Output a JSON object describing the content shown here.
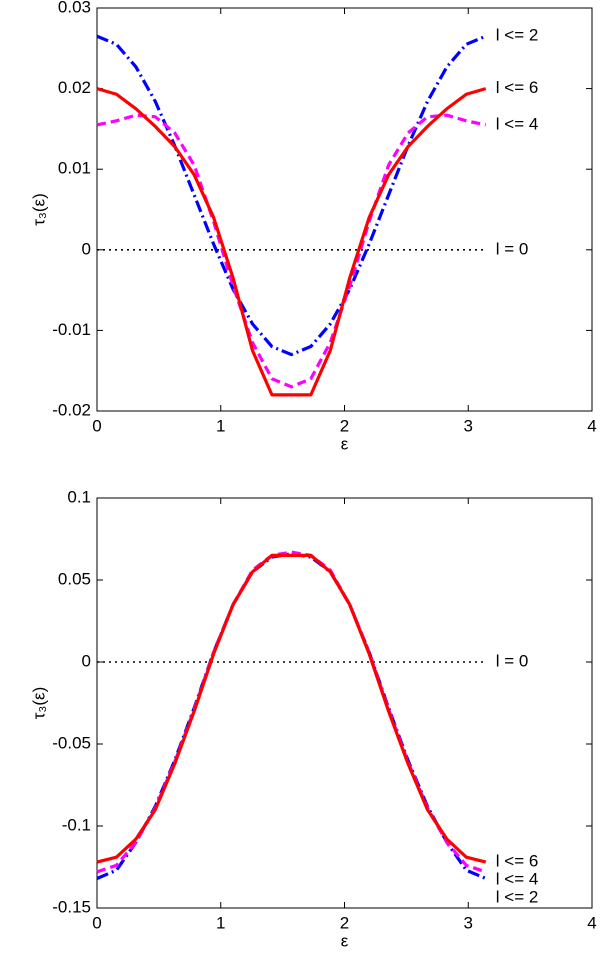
{
  "chart_data": [
    {
      "type": "line",
      "xlabel": "ε",
      "ylabel": "τ₃(ε)",
      "x": [
        0,
        0.1571,
        0.3142,
        0.4712,
        0.6283,
        0.7854,
        0.9425,
        1.0996,
        1.2566,
        1.4137,
        1.5708,
        1.7279,
        1.885,
        2.042,
        2.1991,
        2.3562,
        2.5133,
        2.6704,
        2.8274,
        2.9845,
        3.1416
      ],
      "xlim": [
        0,
        4
      ],
      "xticks": [
        0,
        1,
        2,
        3,
        4
      ],
      "ylim": [
        -0.02,
        0.03
      ],
      "yticks": [
        -0.02,
        -0.01,
        0,
        0.01,
        0.02,
        0.03
      ],
      "series": [
        {
          "name": "l = 0",
          "color": "#000000",
          "linestyle": "dotted",
          "values": [
            0,
            0,
            0,
            0,
            0,
            0,
            0,
            0,
            0,
            0,
            0,
            0,
            0,
            0,
            0,
            0,
            0,
            0,
            0,
            0,
            0
          ]
        },
        {
          "name": "l <= 2",
          "color": "#0000ff",
          "linestyle": "dashdot",
          "values": [
            0.0265,
            0.0255,
            0.0227,
            0.0184,
            0.0129,
            0.0068,
            0.0007,
            -0.0049,
            -0.0092,
            -0.012,
            -0.013,
            -0.012,
            -0.0092,
            -0.0049,
            0.0007,
            0.0068,
            0.0129,
            0.0184,
            0.0227,
            0.0255,
            0.0265
          ]
        },
        {
          "name": "l <= 4",
          "color": "#ff00ff",
          "linestyle": "dashed",
          "values": [
            0.0155,
            0.016,
            0.0167,
            0.0165,
            0.0145,
            0.0105,
            0.0035,
            -0.0045,
            -0.0115,
            -0.016,
            -0.017,
            -0.016,
            -0.0115,
            -0.0045,
            0.0035,
            0.0105,
            0.0145,
            0.0165,
            0.0167,
            0.016,
            0.0155
          ]
        },
        {
          "name": "l <= 6",
          "color": "#ff0000",
          "linestyle": "solid",
          "values": [
            0.02,
            0.0193,
            0.0175,
            0.0153,
            0.0128,
            0.0093,
            0.004,
            -0.0035,
            -0.0125,
            -0.018,
            -0.018,
            -0.018,
            -0.0125,
            -0.0035,
            0.004,
            0.0093,
            0.0128,
            0.0153,
            0.0175,
            0.0193,
            0.02
          ]
        }
      ]
    },
    {
      "type": "line",
      "xlabel": "ε",
      "ylabel": "τ₃(ε)",
      "x": [
        0,
        0.1571,
        0.3142,
        0.4712,
        0.6283,
        0.7854,
        0.9425,
        1.0996,
        1.2566,
        1.4137,
        1.5708,
        1.7279,
        1.885,
        2.042,
        2.1991,
        2.3562,
        2.5133,
        2.6704,
        2.8274,
        2.9845,
        3.1416
      ],
      "xlim": [
        0,
        4
      ],
      "xticks": [
        0,
        1,
        2,
        3,
        4
      ],
      "ylim": [
        -0.15,
        0.1
      ],
      "yticks": [
        -0.15,
        -0.1,
        -0.05,
        0,
        0.05,
        0.1
      ],
      "series": [
        {
          "name": "l = 0",
          "color": "#000000",
          "linestyle": "dotted",
          "values": [
            0,
            0,
            0,
            0,
            0,
            0,
            0,
            0,
            0,
            0,
            0,
            0,
            0,
            0,
            0,
            0,
            0,
            0,
            0,
            0,
            0
          ]
        },
        {
          "name": "l <= 2",
          "color": "#0000ff",
          "linestyle": "dashdot",
          "values": [
            -0.132,
            -0.127,
            -0.11,
            -0.088,
            -0.06,
            -0.028,
            0.006,
            0.035,
            0.055,
            0.064,
            0.066,
            0.064,
            0.055,
            0.035,
            0.006,
            -0.028,
            -0.06,
            -0.088,
            -0.11,
            -0.127,
            -0.132
          ]
        },
        {
          "name": "l <= 4",
          "color": "#ff00ff",
          "linestyle": "dashed",
          "values": [
            -0.128,
            -0.124,
            -0.11,
            -0.089,
            -0.061,
            -0.029,
            0.006,
            0.035,
            0.056,
            0.065,
            0.067,
            0.065,
            0.056,
            0.035,
            0.006,
            -0.029,
            -0.061,
            -0.089,
            -0.11,
            -0.124,
            -0.128
          ]
        },
        {
          "name": "l <= 6",
          "color": "#ff0000",
          "linestyle": "solid",
          "values": [
            -0.122,
            -0.119,
            -0.108,
            -0.09,
            -0.062,
            -0.03,
            0.005,
            0.035,
            0.055,
            0.065,
            0.065,
            0.065,
            0.055,
            0.035,
            0.005,
            -0.03,
            -0.062,
            -0.09,
            -0.108,
            -0.119,
            -0.122
          ]
        }
      ]
    }
  ]
}
